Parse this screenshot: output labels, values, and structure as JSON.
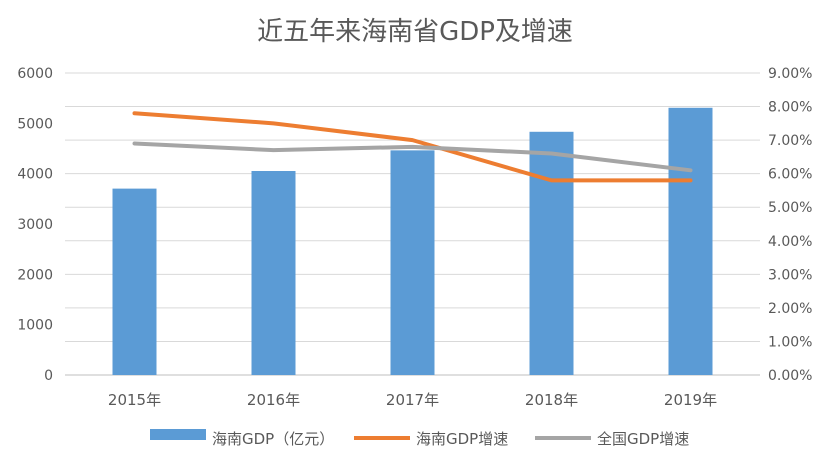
{
  "chart_data": {
    "type": "bar",
    "title": "近五年来海南省GDP及增速",
    "categories": [
      "2015年",
      "2016年",
      "2017年",
      "2018年",
      "2019年"
    ],
    "y_left": {
      "min": 0,
      "max": 6000,
      "ticks": [
        0,
        1000,
        2000,
        3000,
        4000,
        5000,
        6000
      ]
    },
    "y_right": {
      "min": 0,
      "max": 9,
      "ticks": [
        "0.00%",
        "1.00%",
        "2.00%",
        "3.00%",
        "4.00%",
        "5.00%",
        "6.00%",
        "7.00%",
        "8.00%",
        "9.00%"
      ]
    },
    "grid": true,
    "legend_position": "bottom",
    "series": [
      {
        "name": "海南GDP（亿元）",
        "type": "bar",
        "axis": "left",
        "color": "#5B9BD5",
        "values": [
          3703,
          4053,
          4463,
          4832,
          5309
        ]
      },
      {
        "name": "海南GDP增速",
        "type": "line",
        "axis": "right",
        "color": "#ED7D31",
        "values": [
          7.8,
          7.5,
          7.0,
          5.8,
          5.8
        ]
      },
      {
        "name": "全国GDP增速",
        "type": "line",
        "axis": "right",
        "color": "#A5A5A5",
        "values": [
          6.9,
          6.7,
          6.8,
          6.6,
          6.1
        ]
      }
    ]
  }
}
